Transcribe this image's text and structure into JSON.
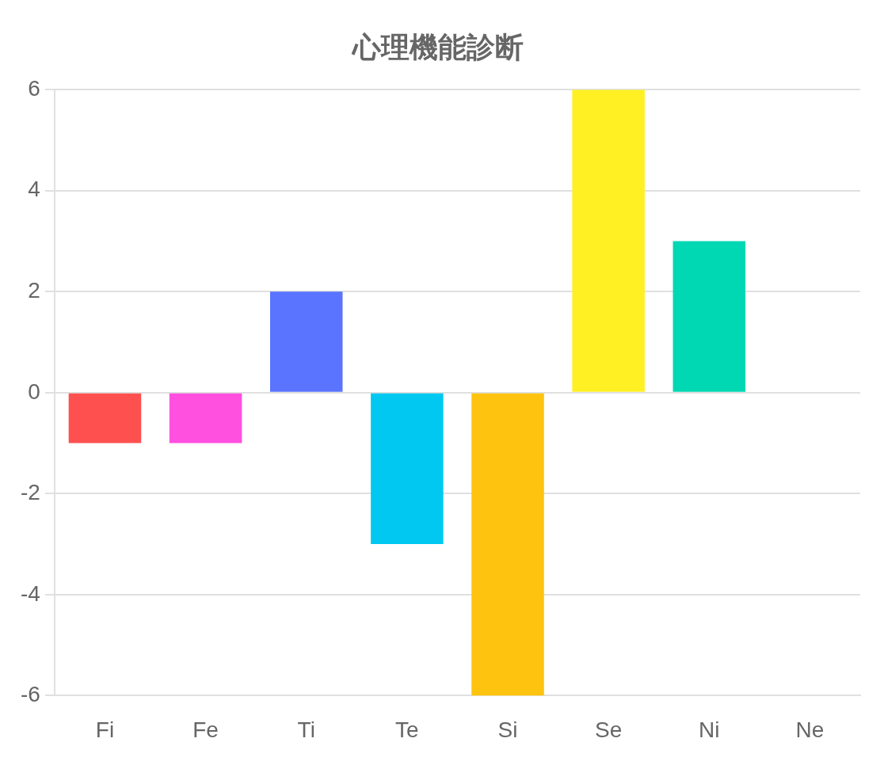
{
  "chart_data": {
    "type": "bar",
    "title": "心理機能診断",
    "categories": [
      "Fi",
      "Fe",
      "Ti",
      "Te",
      "Si",
      "Se",
      "Ni",
      "Ne"
    ],
    "values": [
      -1,
      -1,
      2,
      -3,
      -6,
      6,
      3,
      0
    ],
    "colors": [
      "#ff5050",
      "#ff50e0",
      "#5a74ff",
      "#00c8f0",
      "#fdc30f",
      "#fff024",
      "#00d8b4",
      "#9966ff"
    ],
    "ylim": [
      -6,
      6
    ],
    "yticks": [
      -6,
      -4,
      -2,
      0,
      2,
      4,
      6
    ],
    "grid": "y",
    "legend": false
  }
}
